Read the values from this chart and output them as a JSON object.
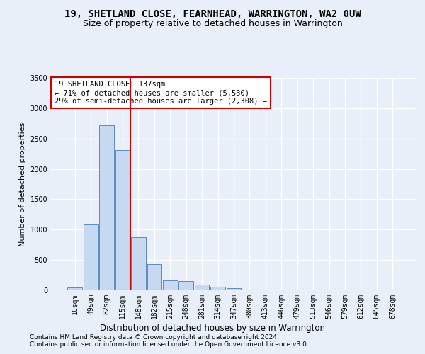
{
  "title": "19, SHETLAND CLOSE, FEARNHEAD, WARRINGTON, WA2 0UW",
  "subtitle": "Size of property relative to detached houses in Warrington",
  "xlabel": "Distribution of detached houses by size in Warrington",
  "ylabel": "Number of detached properties",
  "categories": [
    "16sqm",
    "49sqm",
    "82sqm",
    "115sqm",
    "148sqm",
    "182sqm",
    "215sqm",
    "248sqm",
    "281sqm",
    "314sqm",
    "347sqm",
    "380sqm",
    "413sqm",
    "446sqm",
    "479sqm",
    "513sqm",
    "546sqm",
    "579sqm",
    "612sqm",
    "645sqm",
    "678sqm"
  ],
  "values": [
    50,
    1090,
    2720,
    2310,
    880,
    430,
    165,
    155,
    95,
    60,
    40,
    10,
    5,
    0,
    0,
    0,
    0,
    0,
    0,
    0,
    0
  ],
  "bar_color": "#c6d9f0",
  "bar_edge_color": "#5a8ac6",
  "vline_position": 3.5,
  "vline_color": "#cc0000",
  "annotation_text": "19 SHETLAND CLOSE: 137sqm\n← 71% of detached houses are smaller (5,530)\n29% of semi-detached houses are larger (2,308) →",
  "annotation_box_color": "#ffffff",
  "annotation_box_edge_color": "#cc0000",
  "ylim": [
    0,
    3500
  ],
  "yticks": [
    0,
    500,
    1000,
    1500,
    2000,
    2500,
    3000,
    3500
  ],
  "bg_color": "#e8eff8",
  "plot_bg_color": "#e8eff8",
  "grid_color": "#ffffff",
  "footer_line1": "Contains HM Land Registry data © Crown copyright and database right 2024.",
  "footer_line2": "Contains public sector information licensed under the Open Government Licence v3.0.",
  "title_fontsize": 10,
  "subtitle_fontsize": 9,
  "xlabel_fontsize": 8.5,
  "ylabel_fontsize": 8,
  "tick_fontsize": 7,
  "footer_fontsize": 6.5
}
